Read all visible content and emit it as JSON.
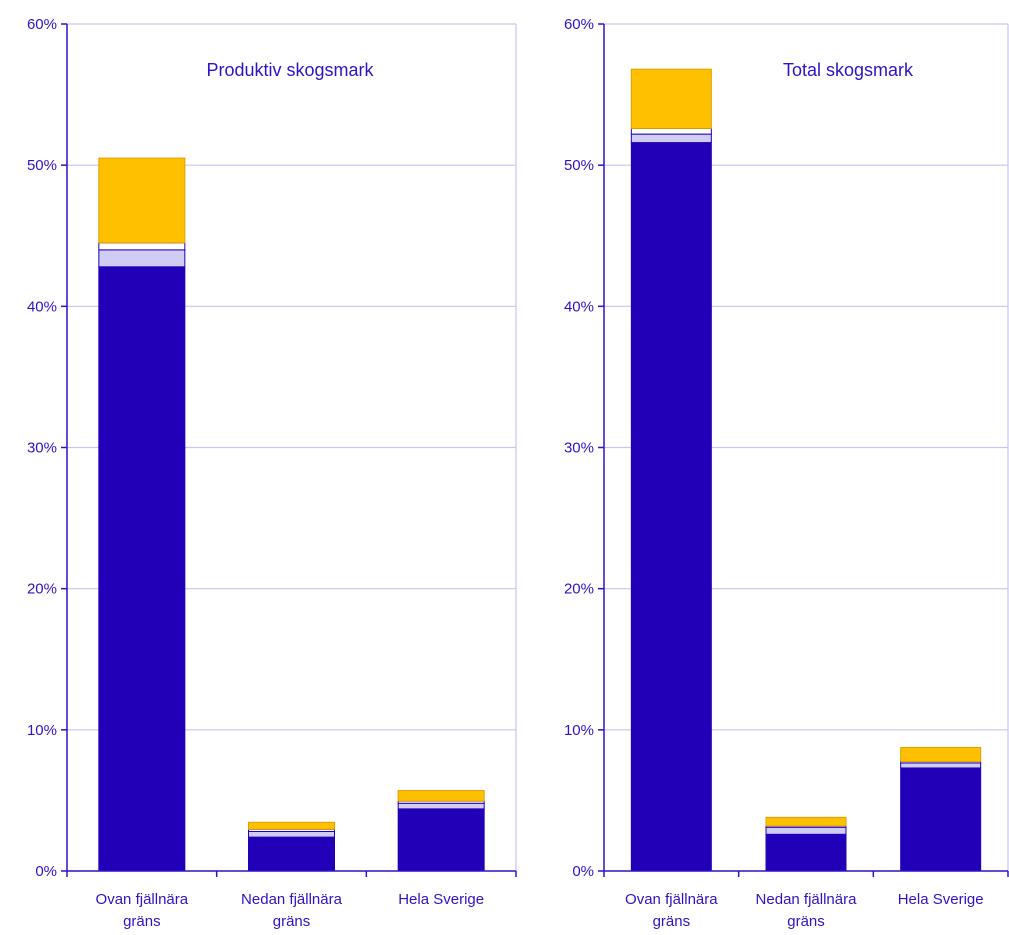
{
  "colors": {
    "axis": "#2d14c8",
    "grid": "#c9c5ee",
    "text": "#2d14c8",
    "series": [
      "#2200b8",
      "#d0ccf2",
      "#ffffff",
      "#ffc000"
    ],
    "series_border": [
      "#2200b8",
      "#2200b8",
      "#2200b8",
      "#e0a000"
    ]
  },
  "chart_data": [
    {
      "type": "bar",
      "stacked": true,
      "title": "Produktiv skogsmark",
      "categories": [
        [
          "Ovan fjällnära",
          "gräns"
        ],
        [
          "Nedan fjällnära",
          "gräns"
        ],
        [
          "Hela Sverige"
        ]
      ],
      "series": [
        {
          "values": [
            42.8,
            2.4,
            4.4
          ]
        },
        {
          "values": [
            1.2,
            0.4,
            0.4
          ]
        },
        {
          "values": [
            0.5,
            0.15,
            0.15
          ]
        },
        {
          "values": [
            6.0,
            0.5,
            0.75
          ]
        }
      ],
      "ylim": [
        0,
        60
      ],
      "yticks": [
        "0%",
        "10%",
        "20%",
        "30%",
        "40%",
        "50%",
        "60%"
      ],
      "grid": true
    },
    {
      "type": "bar",
      "stacked": true,
      "title": "Total skogsmark",
      "categories": [
        [
          "Ovan fjällnära",
          "gräns"
        ],
        [
          "Nedan fjällnära",
          "gräns"
        ],
        [
          "Hela Sverige"
        ]
      ],
      "series": [
        {
          "values": [
            51.6,
            2.6,
            7.3
          ]
        },
        {
          "values": [
            0.6,
            0.5,
            0.35
          ]
        },
        {
          "values": [
            0.4,
            0.1,
            0.1
          ]
        },
        {
          "values": [
            4.2,
            0.6,
            1.0
          ]
        }
      ],
      "ylim": [
        0,
        60
      ],
      "yticks": [
        "0%",
        "10%",
        "20%",
        "30%",
        "40%",
        "50%",
        "60%"
      ],
      "grid": true
    }
  ]
}
